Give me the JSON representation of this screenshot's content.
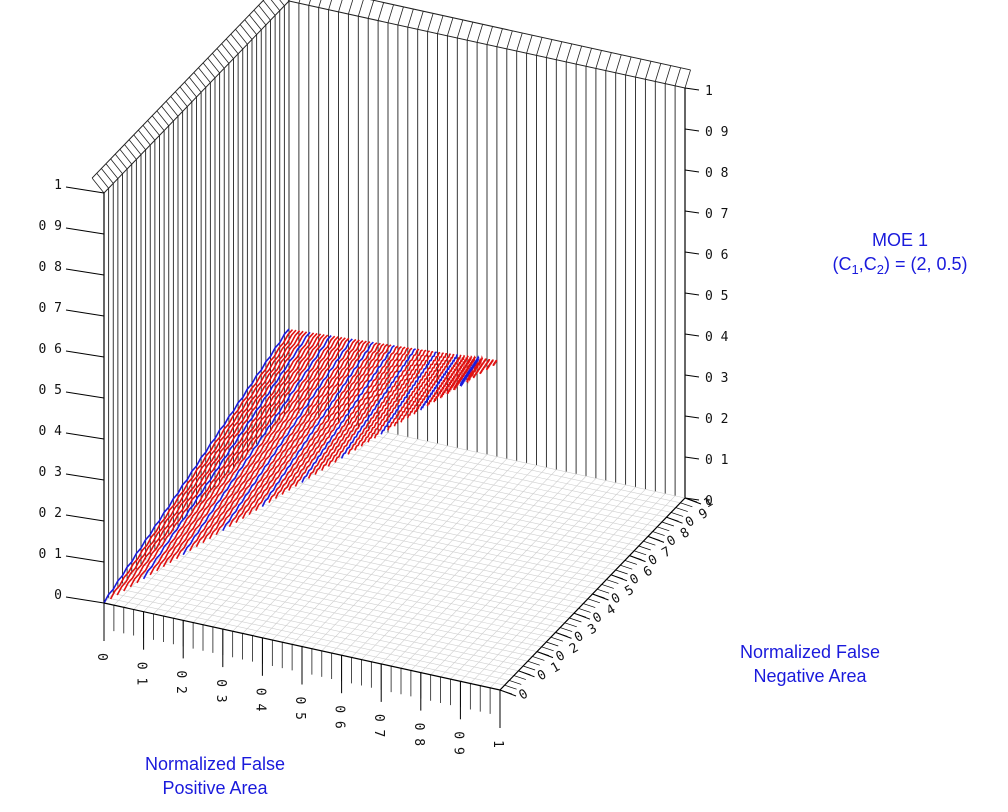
{
  "chart_data": {
    "type": "surface",
    "title_line1": "MOE 1",
    "title_line2_parts": [
      "(C",
      "1",
      ",C",
      "2",
      ") = (2, 0.5)"
    ],
    "xlabel_line1": "Normalized False",
    "xlabel_line2": "Positive Area",
    "ylabel_line1": "Normalized False",
    "ylabel_line2": "Negative Area",
    "x_ticks": [
      "0",
      "0 1",
      "0 2",
      "0 3",
      "0 4",
      "0 5",
      "0 6",
      "0 7",
      "0 8",
      "0 9",
      "1"
    ],
    "y_ticks": [
      "0",
      "0 1",
      "0 2",
      "0 3",
      "0 4",
      "0 5",
      "0 6",
      "0 7",
      "0 8",
      "0 9",
      "1"
    ],
    "z_ticks": [
      "0",
      "0 1",
      "0 2",
      "0 3",
      "0 4",
      "0 5",
      "0 6",
      "0 7",
      "0 8",
      "0 9",
      "1"
    ],
    "x_range": [
      0,
      1
    ],
    "y_range": [
      0,
      1
    ],
    "z_range": [
      0,
      1
    ],
    "surface": "z = (2·x + 0.5·y) / 2.5 on the domain x + y ≤ 1, 0 otherwise",
    "C1": 2,
    "C2": 0.5,
    "contour_colors": {
      "major": "#1a1adc",
      "minor": "#e01010"
    },
    "grid": true
  }
}
